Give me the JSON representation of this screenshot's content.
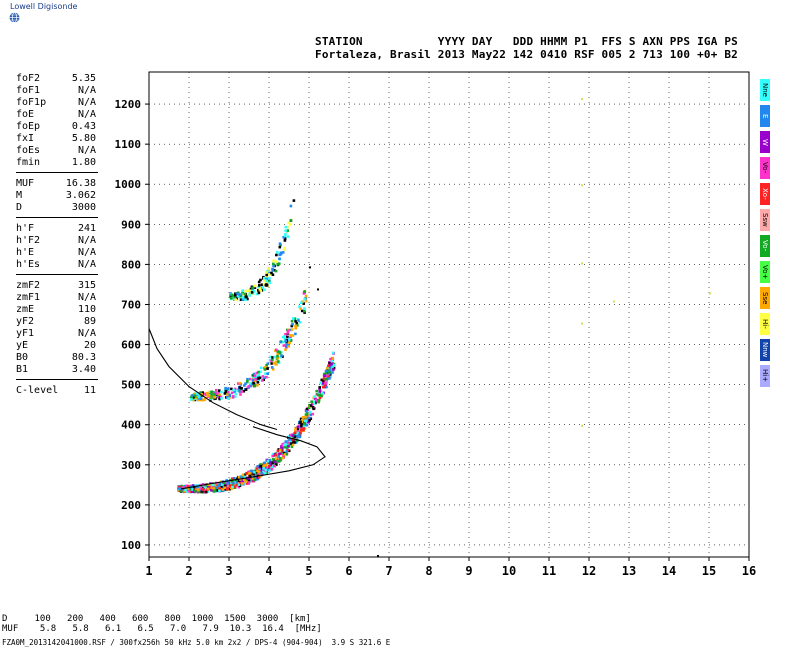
{
  "brand": {
    "text": "Lowell Digisonde",
    "icon": "globe-icon"
  },
  "header": {
    "row1": "STATION           YYYY DAY   DDD HHMM P1  FFS S AXN PPS IGA PS",
    "row2": "Fortaleza, Brasil 2013 May22 142 0410 RSF 005 2 713 100 +0+ B2"
  },
  "params": {
    "group1": [
      {
        "k": "foF2",
        "v": "5.35"
      },
      {
        "k": "foF1",
        "v": "N/A"
      },
      {
        "k": "foF1p",
        "v": "N/A"
      },
      {
        "k": "foE",
        "v": "N/A"
      },
      {
        "k": "foEp",
        "v": "0.43"
      },
      {
        "k": "fxI",
        "v": "5.80"
      },
      {
        "k": "foEs",
        "v": "N/A"
      },
      {
        "k": "fmin",
        "v": "1.80"
      }
    ],
    "group2": [
      {
        "k": "MUF",
        "v": "16.38"
      },
      {
        "k": "M",
        "v": "3.062"
      },
      {
        "k": "D",
        "v": "3000"
      }
    ],
    "group3": [
      {
        "k": "h'F",
        "v": "241"
      },
      {
        "k": "h'F2",
        "v": "N/A"
      },
      {
        "k": "h'E",
        "v": "N/A"
      },
      {
        "k": "h'Es",
        "v": "N/A"
      }
    ],
    "group4": [
      {
        "k": "zmF2",
        "v": "315"
      },
      {
        "k": "zmF1",
        "v": "N/A"
      },
      {
        "k": "zmE",
        "v": "110"
      },
      {
        "k": "yF2",
        "v": "89"
      },
      {
        "k": "yF1",
        "v": "N/A"
      },
      {
        "k": "yE",
        "v": "20"
      },
      {
        "k": "B0",
        "v": "80.3"
      },
      {
        "k": "B1",
        "v": "3.40"
      }
    ],
    "group5": [
      {
        "k": "C-level",
        "v": "11"
      }
    ]
  },
  "legend": [
    {
      "label": "Nne",
      "color": "#33ffff"
    },
    {
      "label": "E",
      "color": "#2288ee"
    },
    {
      "label": "W",
      "color": "#9900cc"
    },
    {
      "label": "Vo-",
      "color": "#ff33cc"
    },
    {
      "label": "Xo-",
      "color": "#ff2222"
    },
    {
      "label": "Ssw",
      "color": "#ffaaaa"
    },
    {
      "label": "Vo-",
      "color": "#11aa22"
    },
    {
      "label": "Vo+",
      "color": "#44ff44"
    },
    {
      "label": "Sse",
      "color": "#ffaa00"
    },
    {
      "label": "Hi-",
      "color": "#ffff44"
    },
    {
      "label": "Nnw",
      "color": "#1144aa"
    },
    {
      "label": "Hi+",
      "color": "#aaaaff"
    }
  ],
  "chart_data": {
    "type": "scatter",
    "x_ticks": [
      1,
      2,
      3,
      4,
      5,
      6,
      7,
      8,
      9,
      10,
      11,
      12,
      13,
      14,
      15,
      16
    ],
    "y_ticks": [
      100,
      200,
      300,
      400,
      500,
      600,
      700,
      800,
      900,
      1000,
      1100,
      1200
    ],
    "xlim": [
      1,
      16
    ],
    "ylim": [
      70,
      1280
    ],
    "grid": true,
    "bands": [
      {
        "name": "F-trace",
        "x0": 1.7,
        "x1": 5.6,
        "y0": 240,
        "y1": 560,
        "colors": [
          "#000000",
          "#ff33cc",
          "#2288ee",
          "#11aa22",
          "#33ffff",
          "#ffaa00",
          "#9900cc",
          "#ff2222"
        ]
      },
      {
        "name": "2F-trace",
        "x0": 2.0,
        "x1": 4.9,
        "y0": 470,
        "y1": 710,
        "colors": [
          "#000000",
          "#ff33cc",
          "#2288ee",
          "#11aa22",
          "#33ffff",
          "#ffaa00"
        ]
      },
      {
        "name": "3F-trace",
        "x0": 3.0,
        "x1": 4.6,
        "y0": 720,
        "y1": 950,
        "colors": [
          "#000000",
          "#2288ee",
          "#11aa22",
          "#33ffff",
          "#ffff44"
        ]
      }
    ],
    "profile_lower": [
      [
        1.8,
        240
      ],
      [
        2.5,
        252
      ],
      [
        3.5,
        268
      ],
      [
        4.5,
        285
      ],
      [
        5.1,
        300
      ],
      [
        5.4,
        320
      ],
      [
        5.2,
        345
      ],
      [
        4.8,
        360
      ],
      [
        4.2,
        375
      ],
      [
        3.6,
        395
      ]
    ],
    "profile_upper": [
      [
        1.0,
        640
      ],
      [
        1.2,
        590
      ],
      [
        1.5,
        545
      ],
      [
        2.0,
        495
      ],
      [
        2.6,
        455
      ],
      [
        3.2,
        425
      ],
      [
        3.8,
        400
      ],
      [
        4.2,
        388
      ]
    ],
    "stray_points": [
      [
        11.8,
        1215
      ],
      [
        11.8,
        1000
      ],
      [
        11.8,
        805
      ],
      [
        11.8,
        655
      ],
      [
        11.8,
        400
      ],
      [
        12.6,
        710
      ],
      [
        15.0,
        730
      ],
      [
        6.7,
        75
      ],
      [
        5.0,
        795
      ],
      [
        5.2,
        740
      ]
    ]
  },
  "footer": {
    "d_row": "D     100   200   400   600   800  1000  1500  3000  [km]",
    "muf_row": "MUF    5.8   5.8   6.1   6.5   7.0   7.9  10.3  16.4  [MHz]",
    "file": "FZA0M_2013142041000.RSF / 300fx256h 50 kHz 5.0 km 2x2 / DPS-4 (904-904)  3.9 S 321.6 E"
  }
}
